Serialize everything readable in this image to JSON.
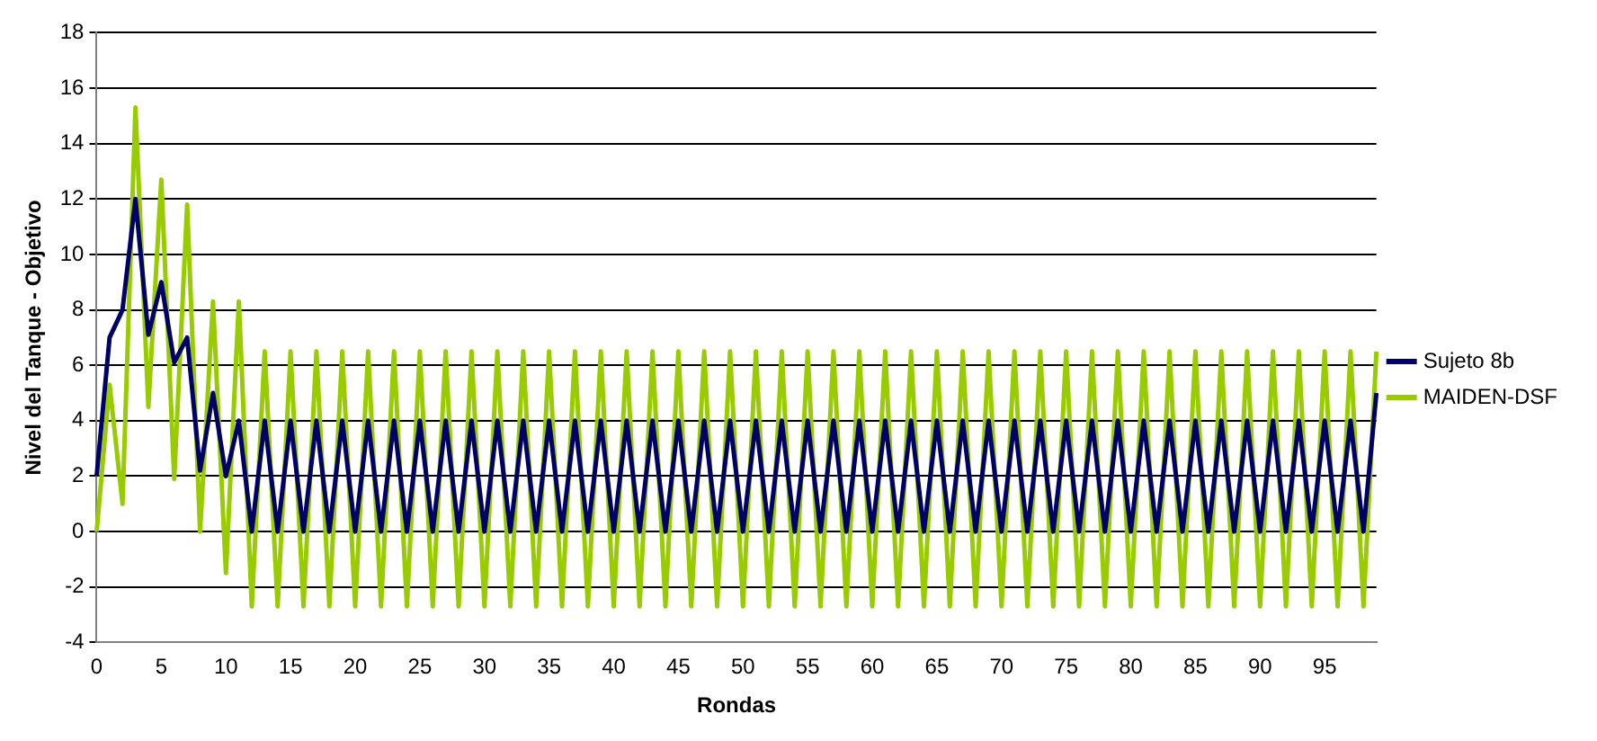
{
  "chart_data": {
    "type": "line",
    "xlabel": "Rondas",
    "ylabel": "Nivel del Tanque - Objetivo",
    "categories": [
      "0",
      null,
      null,
      null,
      null,
      "5",
      null,
      null,
      null,
      null,
      "10",
      null,
      null,
      null,
      null,
      "15",
      null,
      null,
      null,
      null,
      "20",
      null,
      null,
      null,
      null,
      "25",
      null,
      null,
      null,
      null,
      "30",
      null,
      null,
      null,
      null,
      "35",
      null,
      null,
      null,
      null,
      "40",
      null,
      null,
      null,
      null,
      "45",
      null,
      null,
      null,
      null,
      "50",
      null,
      null,
      null,
      null,
      "55",
      null,
      null,
      null,
      null,
      "60",
      null,
      null,
      null,
      null,
      "65",
      null,
      null,
      null,
      null,
      "70",
      null,
      null,
      null,
      null,
      "75",
      null,
      null,
      null,
      null,
      "80",
      null,
      null,
      null,
      null,
      "85",
      null,
      null,
      null,
      null,
      "90",
      null,
      null,
      null,
      null,
      "95",
      null,
      null,
      null,
      null
    ],
    "series": [
      {
        "name": "Sujeto 8b",
        "color": "#000066",
        "values": [
          2,
          7,
          8,
          12,
          7.1,
          9,
          6.1,
          7,
          2.2,
          5,
          2,
          4,
          0,
          4,
          0,
          4,
          0,
          4,
          0,
          4,
          0,
          4,
          0,
          4,
          0,
          4,
          0,
          4,
          0,
          4,
          0,
          4,
          0,
          4,
          0,
          4,
          0,
          4,
          0,
          4,
          0,
          4,
          0,
          4,
          0,
          4,
          0,
          4,
          0,
          4,
          0,
          4,
          0,
          4,
          0,
          4,
          0,
          4,
          0,
          4,
          0,
          4,
          0,
          4,
          0,
          4,
          0,
          4,
          0,
          4,
          0,
          4,
          0,
          4,
          0,
          4,
          0,
          4,
          0,
          4,
          0,
          4,
          0,
          4,
          0,
          4,
          0,
          4,
          0,
          4,
          0,
          4,
          0,
          4,
          0,
          4,
          0,
          4,
          0,
          5
        ]
      },
      {
        "name": "MAIDEN-DSF",
        "color": "#99cc00",
        "values": [
          0,
          5.3,
          1,
          15.3,
          4.5,
          12.7,
          1.9,
          11.8,
          0,
          8.3,
          -1.5,
          8.3,
          -2.7,
          6.5,
          -2.7,
          6.5,
          -2.7,
          6.5,
          -2.7,
          6.5,
          -2.7,
          6.5,
          -2.7,
          6.5,
          -2.7,
          6.5,
          -2.7,
          6.5,
          -2.7,
          6.5,
          -2.7,
          6.5,
          -2.7,
          6.5,
          -2.7,
          6.5,
          -2.7,
          6.5,
          -2.7,
          6.5,
          -2.7,
          6.5,
          -2.7,
          6.5,
          -2.7,
          6.5,
          -2.7,
          6.5,
          -2.7,
          6.5,
          -2.7,
          6.5,
          -2.7,
          6.5,
          -2.7,
          6.5,
          -2.7,
          6.5,
          -2.7,
          6.5,
          -2.7,
          6.5,
          -2.7,
          6.5,
          -2.7,
          6.5,
          -2.7,
          6.5,
          -2.7,
          6.5,
          -2.7,
          6.5,
          -2.7,
          6.5,
          -2.7,
          6.5,
          -2.7,
          6.5,
          -2.7,
          6.5,
          -2.7,
          6.5,
          -2.7,
          6.5,
          -2.7,
          6.5,
          -2.7,
          6.5,
          -2.7,
          6.5,
          -2.7,
          6.5,
          -2.7,
          6.5,
          -2.7,
          6.5,
          -2.7,
          6.5,
          -2.7,
          6.5
        ]
      }
    ],
    "ylim": [
      -4,
      18
    ],
    "yticks": [
      -4,
      -2,
      0,
      2,
      4,
      6,
      8,
      10,
      12,
      14,
      16,
      18
    ],
    "grid": "y",
    "legend": "right",
    "marker": "none",
    "line_style": "solid"
  }
}
